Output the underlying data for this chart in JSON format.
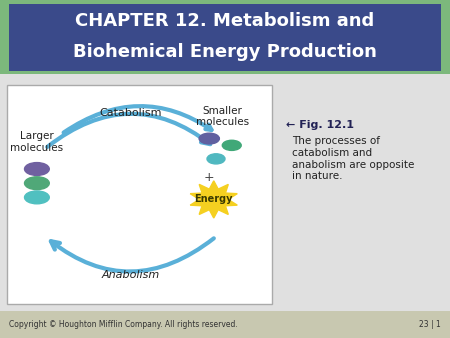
{
  "title_line1": "CHAPTER 12. Metabolism and",
  "title_line2": "Biohemical Energy Production",
  "title_bg_color": "#3a4a8a",
  "title_text_color": "#ffffff",
  "header_border_color": "#7cb87c",
  "bg_color": "#e8e8e8",
  "slide_bg": "#e0e0e0",
  "fig_caption_arrow": "← Fig. 12.1",
  "fig_caption_text": "The processes of\ncatabolism and\nanabolism are opposite\nin nature.",
  "catabolism_label": "Catabolism",
  "anabolism_label": "Anabolism",
  "larger_label": "Larger\nmolecules",
  "smaller_label": "Smaller\nmolecules",
  "energy_label": "Energy",
  "copyright_text": "Copyright © Houghton Mifflin Company. All rights reserved.",
  "page_num": "23 | 1",
  "arrow_color": "#5ab0d8",
  "molecule_colors": [
    "#7060a0",
    "#50a878",
    "#50c0c0"
  ],
  "small_molecule_colors": [
    "#6060a0",
    "#40a878",
    "#50b8c0"
  ],
  "energy_color": "#f5d020",
  "energy_text_color": "#3a3a00",
  "box_bg": "#ffffff"
}
